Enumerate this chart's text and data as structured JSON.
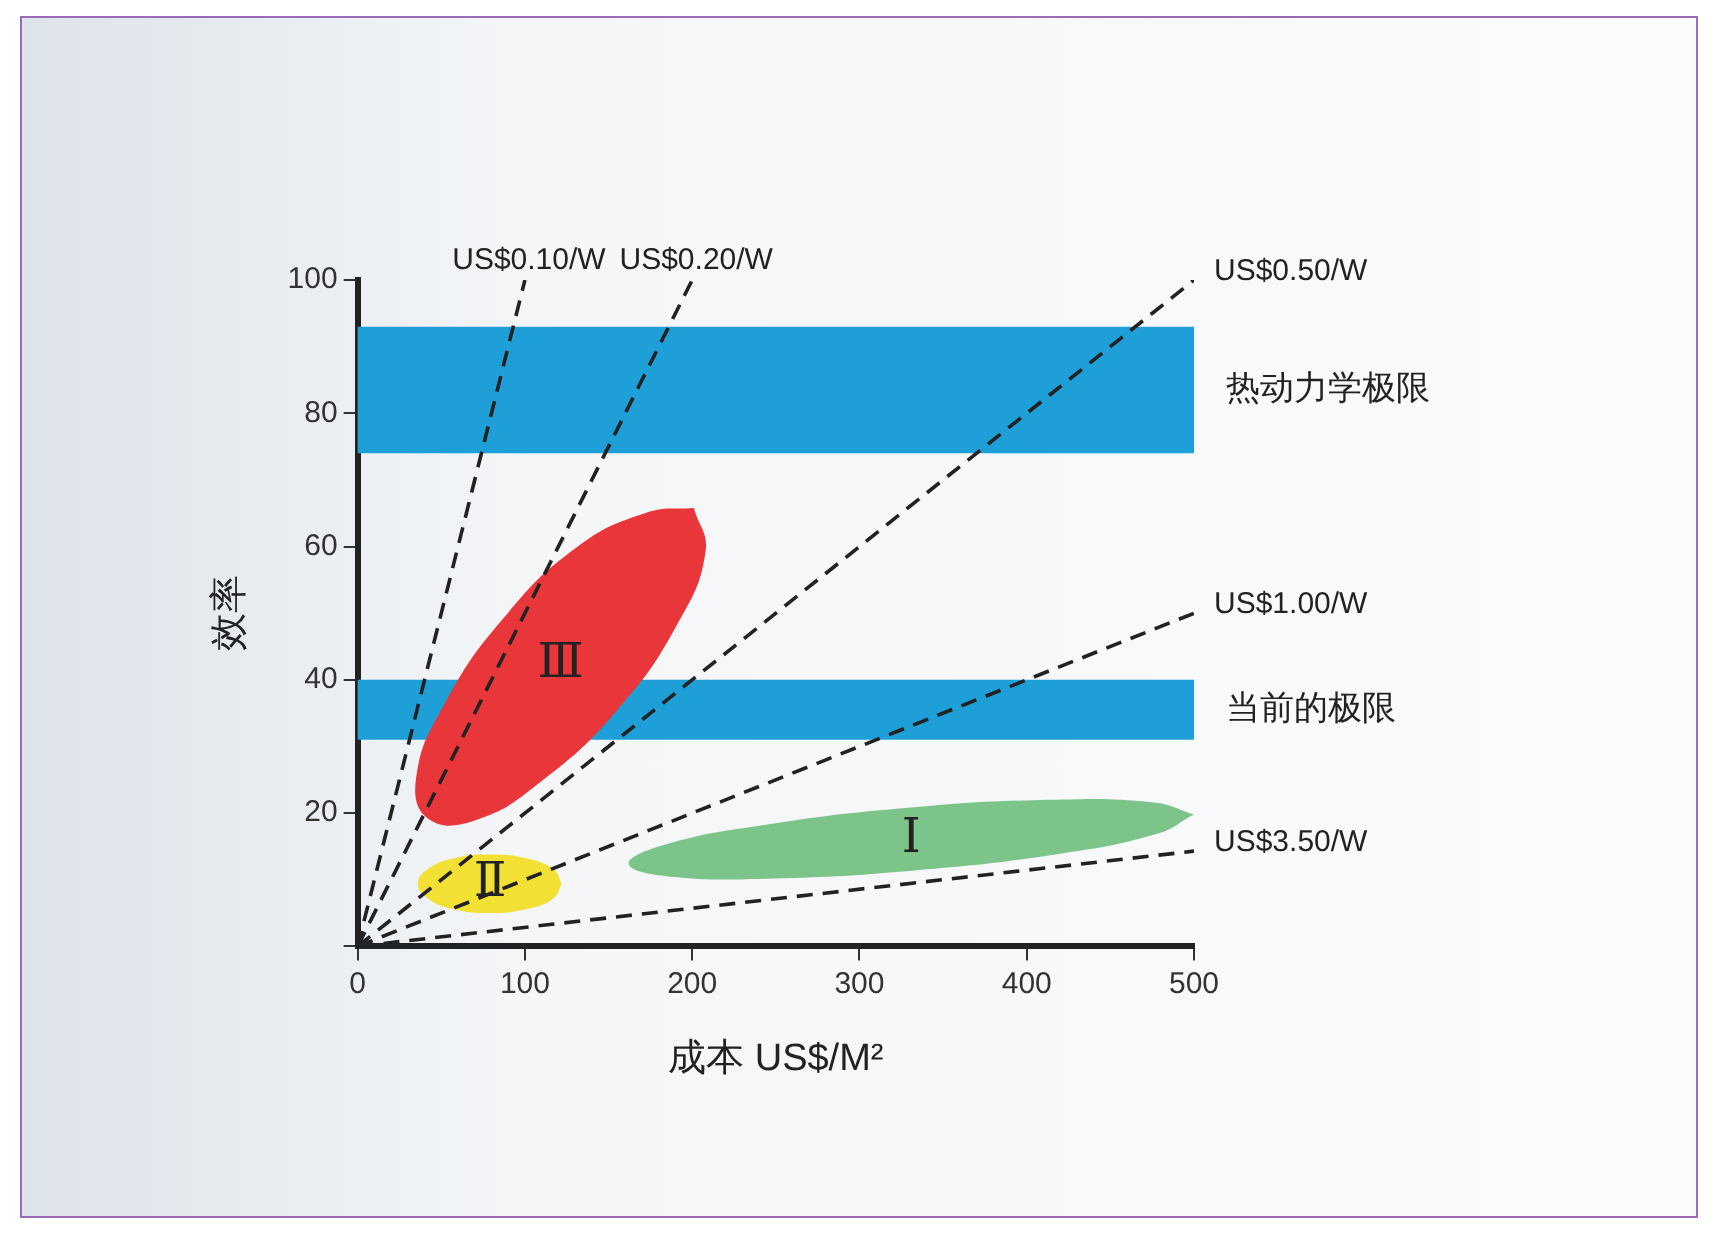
{
  "chart_data": {
    "type": "line",
    "xlabel": "成本 US$/M²",
    "ylabel": "效率",
    "xlim": [
      0,
      500
    ],
    "xticks": [
      0,
      100,
      200,
      300,
      400,
      500
    ],
    "ylim": [
      0,
      100
    ],
    "yticks": [
      {
        "value": 0,
        "label": null
      },
      20,
      40,
      60,
      80,
      100
    ],
    "grid": false,
    "legend": false,
    "marker": "none",
    "bands": [
      {
        "axis": "y",
        "from": 74,
        "to": 93,
        "label": "热动力学极限",
        "color": "#1e9fd8"
      },
      {
        "axis": "y",
        "from": 31,
        "to": 40,
        "label": "当前的极限",
        "color": "#1e9fd8"
      }
    ],
    "series": [
      {
        "name": "Ⅲ",
        "type": "area",
        "color": "#e8363a",
        "x": [
          201,
          208,
          191,
          156,
          111,
          70,
          42,
          35,
          52,
          87,
          131,
          173,
          201
        ],
        "values": [
          65.8,
          59.3,
          48.3,
          35.7,
          25,
          18.9,
          19.2,
          25.4,
          36.4,
          49.2,
          59.9,
          65.1,
          65.8
        ]
      },
      {
        "name": "Ⅱ",
        "type": "area",
        "color": "#f2e034",
        "x": [
          122,
          117,
          101,
          79,
          57,
          42,
          36,
          42,
          57,
          79,
          101,
          117,
          122
        ],
        "values": [
          9.4,
          11.6,
          13.2,
          13.8,
          13.2,
          11.6,
          9.4,
          7.2,
          5.6,
          5,
          5.6,
          7.2,
          9.4
        ]
      },
      {
        "name": "Ⅰ",
        "type": "area",
        "color": "#7cc48a",
        "x": [
          500,
          478,
          417,
          333,
          248,
          186,
          162,
          184,
          245,
          329,
          414,
          476,
          500
        ],
        "values": [
          19.8,
          16.9,
          13.8,
          11.4,
          10.2,
          10.5,
          12.4,
          15.3,
          18.3,
          20.8,
          22,
          21.6,
          19.8
        ]
      },
      {
        "name": "US$0.10/W",
        "type": "line",
        "color": "#222222",
        "line_style": "dashed",
        "x": [
          0,
          100
        ],
        "values": [
          0,
          100
        ]
      },
      {
        "name": "US$0.20/W",
        "type": "line",
        "color": "#222222",
        "line_style": "dashed",
        "x": [
          0,
          200
        ],
        "values": [
          0,
          100
        ]
      },
      {
        "name": "US$0.50/W",
        "type": "line",
        "color": "#222222",
        "line_style": "dashed",
        "x": [
          0,
          500
        ],
        "values": [
          0,
          100
        ]
      },
      {
        "name": "US$1.00/W",
        "type": "line",
        "color": "#222222",
        "line_style": "dashed",
        "x": [
          0,
          500
        ],
        "values": [
          0,
          50
        ]
      },
      {
        "name": "US$3.50/W",
        "type": "line",
        "color": "#222222",
        "line_style": "dashed",
        "x": [
          0,
          500
        ],
        "values": [
          0,
          14.3
        ]
      }
    ]
  }
}
